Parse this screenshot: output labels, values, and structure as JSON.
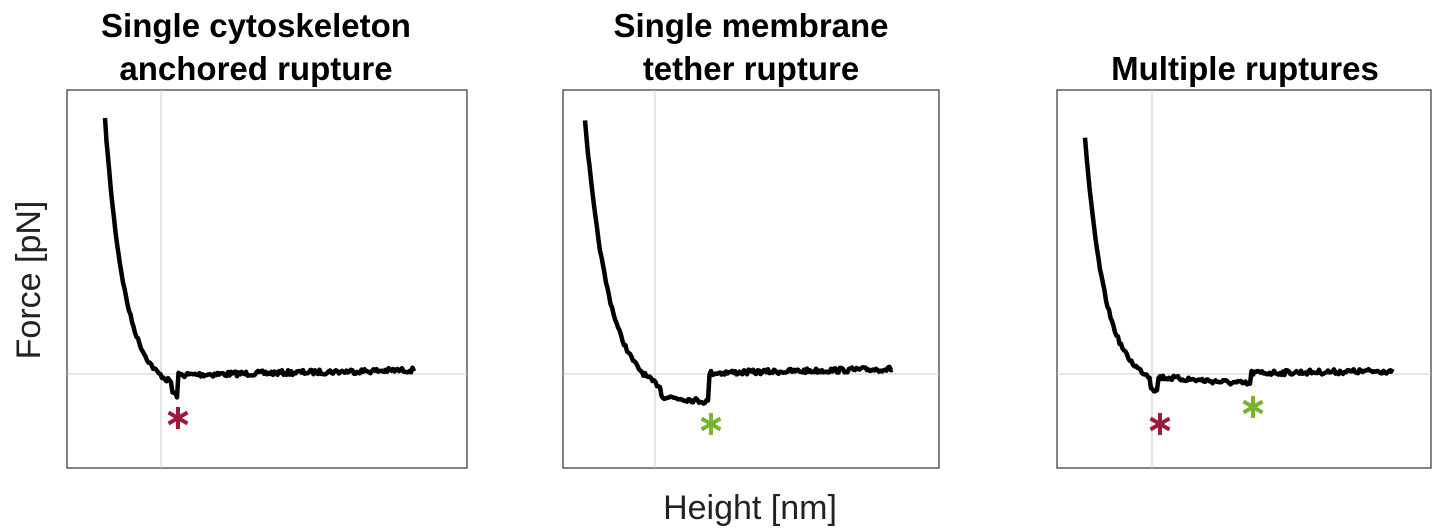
{
  "panels": [
    {
      "title": [
        "Single cytoskeleton",
        "anchored rupture"
      ]
    },
    {
      "title": [
        "Single membrane",
        "tether rupture"
      ]
    },
    {
      "title": [
        "Multiple ruptures"
      ]
    }
  ],
  "y_label": "Force [pN]",
  "x_label": "Height [nm]"
}
